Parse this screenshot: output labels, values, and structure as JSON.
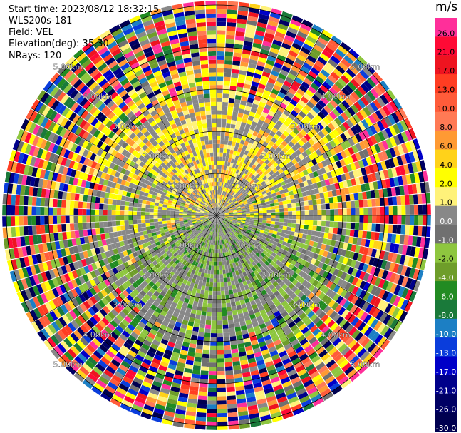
{
  "header": {
    "start_time": "Start time: 2023/08/12 18:32:15",
    "instrument": "WLS200s-181",
    "field": "Field: VEL",
    "elevation": "Elevation(deg): 35.30",
    "nrays": "NRays: 120"
  },
  "colorbar": {
    "unit": "m/s",
    "ticks": [
      "26.0",
      "21.0",
      "17.0",
      "13.0",
      "10.0",
      "8.0",
      "6.0",
      "4.0",
      "2.0",
      "1.0",
      "0.0",
      "-1.0",
      "-2.0",
      "-4.0",
      "-6.0",
      "-8.0",
      "-10.0",
      "-13.0",
      "-17.0",
      "-21.0",
      "-26.0",
      "-30.0"
    ],
    "colors": [
      "#ff2f9a",
      "#ff0a35",
      "#ee1420",
      "#ff3d22",
      "#ff5c3a",
      "#ff7a55",
      "#ff9a33",
      "#ffd21a",
      "#ffff00",
      "#fff27a",
      "#888888",
      "#707070",
      "#8ec63f",
      "#6e9d2a",
      "#228b22",
      "#1a7a3a",
      "#1c7fc4",
      "#0a3ddc",
      "#0000c8",
      "#00008a",
      "#000064",
      "#000050"
    ]
  },
  "chart_data": {
    "type": "heatmap",
    "title": "",
    "nrays": 120,
    "range_ring_labels": [
      "1.00km",
      "2.00km",
      "3.00km",
      "4.00km",
      "5.00km"
    ],
    "range_rings_km": [
      1,
      2,
      3,
      4,
      5
    ],
    "max_range_km": 5.1,
    "value_range": [
      -30,
      26
    ],
    "units": "m/s"
  }
}
